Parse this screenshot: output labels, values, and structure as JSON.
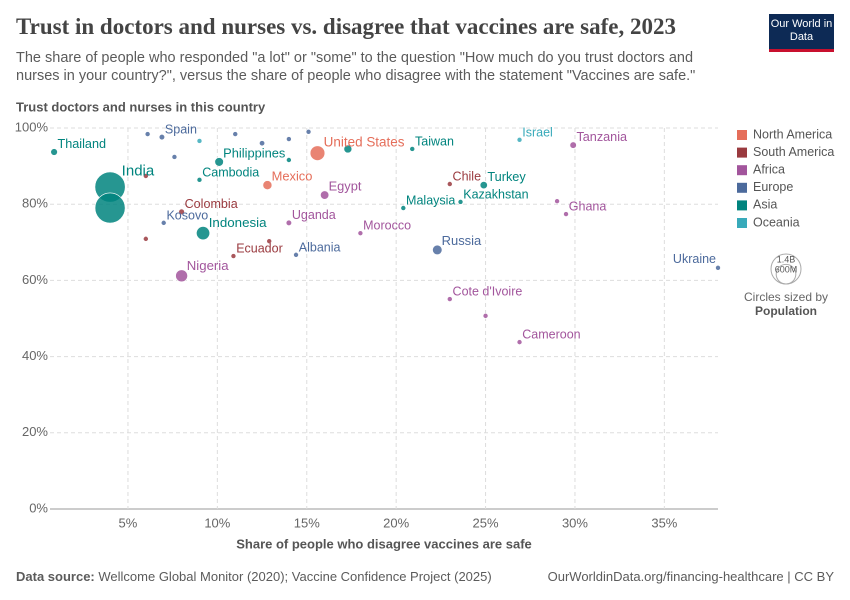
{
  "chart_data": {
    "type": "scatter",
    "title": "Trust in doctors and nurses vs. disagree that vaccines are safe, 2023",
    "subtitle": "The share of people who responded \"a lot\" or \"some\" to the question \"How much do you trust doctors and nurses in your country?\", versus the share of people who disagree with the statement \"Vaccines are safe.\"",
    "y_label": "Trust doctors and nurses in this country",
    "x_label": "Share of people who disagree vaccines are safe",
    "logo": "Our World in Data",
    "source_label": "Data source:",
    "source": "Wellcome Global Monitor (2020); Vaccine Confidence Project (2025)",
    "credit": "OurWorldinData.org/financing-healthcare | CC BY",
    "xlim": [
      0.64,
      38
    ],
    "ylim": [
      0,
      100
    ],
    "xticks": [
      {
        "value": 5,
        "label": "5%"
      },
      {
        "value": 10,
        "label": "10%"
      },
      {
        "value": 15,
        "label": "15%"
      },
      {
        "value": 20,
        "label": "20%"
      },
      {
        "value": 25,
        "label": "25%"
      },
      {
        "value": 30,
        "label": "30%"
      },
      {
        "value": 35,
        "label": "35%"
      }
    ],
    "yticks": [
      {
        "value": 0,
        "label": "0%"
      },
      {
        "value": 20,
        "label": "20%"
      },
      {
        "value": 40,
        "label": "40%"
      },
      {
        "value": 60,
        "label": "60%"
      },
      {
        "value": 80,
        "label": "80%"
      },
      {
        "value": 100,
        "label": "100%"
      }
    ],
    "grid": true,
    "size_title": "Circles sized by",
    "size_variable": "Population",
    "size_legend": [
      {
        "value": 1400000000,
        "label": "1.4B"
      },
      {
        "value": 600000000,
        "label": "600M"
      }
    ],
    "series": [
      {
        "name": "North America",
        "color": "#e56e5a",
        "labels": [
          "Mexico",
          "United States"
        ],
        "x": [
          12.8,
          15.6
        ],
        "values": [
          85.0,
          93.4
        ],
        "sizes": [
          128000000,
          339000000
        ]
      },
      {
        "name": "South America",
        "color": "#9a3a3f",
        "labels": [
          "Colombia",
          "Chile",
          "Ecuador",
          null,
          null,
          null
        ],
        "x": [
          8.0,
          23.0,
          10.9,
          6.0,
          6.0,
          12.9
        ],
        "values": [
          78.0,
          85.3,
          66.4,
          87.4,
          70.9,
          70.3
        ],
        "sizes": [
          52000000,
          19600000,
          18000000,
          11000000,
          7000000,
          6000000
        ]
      },
      {
        "name": "Africa",
        "color": "#a2559c",
        "labels": [
          "Tanzania",
          "Egypt",
          "Ghana",
          "Uganda",
          "Morocco",
          "Nigeria",
          "Cote d'Ivoire",
          "Cameroon",
          null,
          null
        ],
        "x": [
          29.9,
          16.0,
          29.5,
          14.0,
          18.0,
          8.0,
          23.0,
          26.9,
          25.0,
          29.0
        ],
        "values": [
          95.5,
          82.4,
          77.4,
          75.1,
          72.4,
          61.2,
          55.1,
          43.8,
          50.7,
          80.8
        ],
        "sizes": [
          67000000,
          112000000,
          34000000,
          48000000,
          37800000,
          223000000,
          28900000,
          28600000,
          5000000,
          5000000
        ]
      },
      {
        "name": "Europe",
        "color": "#4c6a9c",
        "labels": [
          "Spain",
          "Kosovo",
          "Russia",
          "Albania",
          "Ukraine",
          null,
          null,
          null,
          null,
          null,
          null
        ],
        "x": [
          6.9,
          7.0,
          22.3,
          14.4,
          38.0,
          6.1,
          11.0,
          7.6,
          14.0,
          15.1,
          12.5
        ],
        "values": [
          97.6,
          75.1,
          68.0,
          66.7,
          63.3,
          98.4,
          98.4,
          92.4,
          97.1,
          99.0,
          96.0
        ],
        "sizes": [
          48000000,
          1800000,
          144000000,
          2800000,
          37000000,
          5000000,
          5000000,
          10000000,
          5000000,
          3000000,
          45000000
        ]
      },
      {
        "name": "Asia",
        "color": "#00847e",
        "labels": [
          "Thailand",
          "Philippines",
          "Cambodia",
          "Taiwan",
          "India",
          "Turkey",
          "Malaysia",
          "Kazakhstan",
          "Indonesia",
          null,
          null,
          null
        ],
        "x": [
          0.87,
          10.1,
          9.0,
          20.9,
          4.0,
          24.9,
          20.4,
          23.6,
          9.2,
          4.0,
          14.0,
          17.3
        ],
        "values": [
          93.7,
          91.1,
          86.4,
          94.5,
          84.5,
          85.0,
          79.0,
          80.6,
          72.4,
          79.0,
          91.6,
          94.5
        ],
        "sizes": [
          71800000,
          117000000,
          17000000,
          24000000,
          1428000000,
          85000000,
          34000000,
          19600000,
          277000000,
          1410000000,
          30000000,
          100000000
        ]
      },
      {
        "name": "Oceania",
        "color": "#38aaba",
        "labels": [
          "Israel",
          null
        ],
        "x": [
          26.9,
          9.0
        ],
        "values": [
          96.9,
          96.6
        ],
        "sizes": [
          9700000,
          5000000
        ]
      }
    ]
  }
}
